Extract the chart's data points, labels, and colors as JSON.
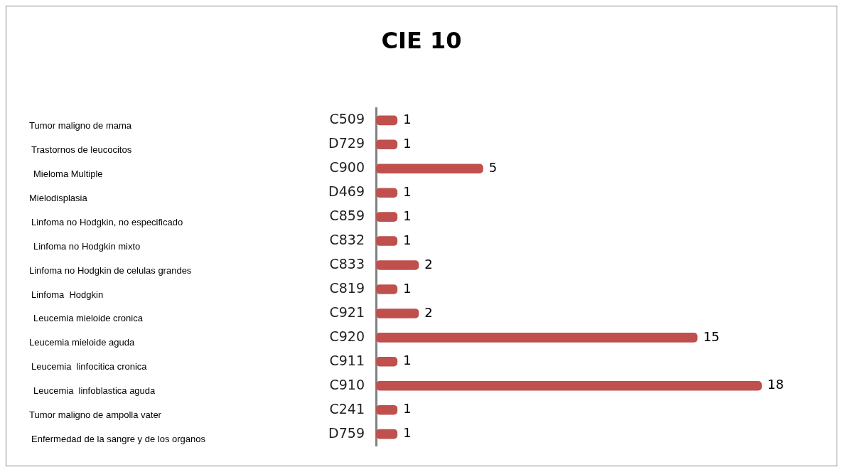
{
  "chart_data": {
    "type": "bar",
    "orientation": "horizontal",
    "title": "CIE 10",
    "categories": [
      "C509",
      "D729",
      "C900",
      "D469",
      "C859",
      "C832",
      "C833",
      "C819",
      "C921",
      "C920",
      "C911",
      "C910",
      "C241",
      "D759"
    ],
    "values": [
      1,
      1,
      5,
      1,
      1,
      1,
      2,
      1,
      2,
      15,
      1,
      18,
      1,
      1
    ],
    "color": "#c0504d",
    "data_labels": true,
    "grid": false,
    "legend": false,
    "tick_labels": "y",
    "annotations": [
      "Tumor maligno de mama",
      "Trastornos de leucocitos",
      "Mieloma Multiple",
      "Mielodisplasia",
      "Linfoma no Hodgkin, no especificado",
      "Linfoma no Hodgkin mixto",
      "Linfoma no Hodgkin de celulas grandes",
      "Linfoma  Hodgkin",
      "Leucemia mieloide cronica",
      "Leucemia mieloide aguda",
      "Leucemia  linfocitica cronica",
      "Leucemia  linfoblastica aguda",
      "Tumor maligno de ampolla vater",
      "Enfermedad de la sangre y de los organos"
    ]
  }
}
